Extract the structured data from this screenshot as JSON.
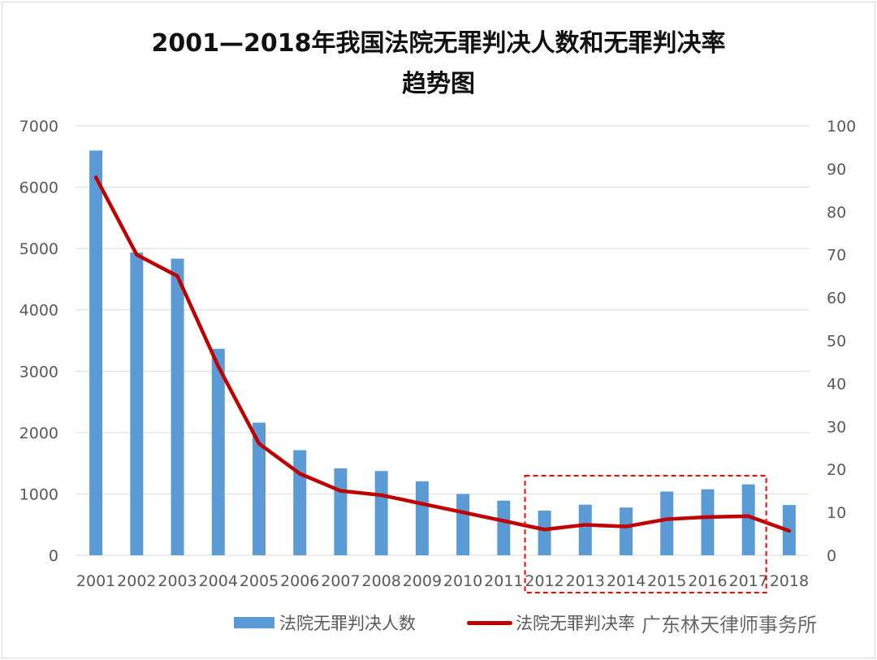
{
  "chart_data": {
    "type": "bar+line",
    "title_line1": "2001—2018年我国法院无罪判决人数和无罪判决率",
    "title_line2": "趋势图",
    "categories": [
      "2001",
      "2002",
      "2003",
      "2004",
      "2005",
      "2006",
      "2007",
      "2008",
      "2009",
      "2010",
      "2011",
      "2012",
      "2013",
      "2014",
      "2015",
      "2016",
      "2017",
      "2018"
    ],
    "series": [
      {
        "name": "法院无罪判决人数",
        "type": "bar",
        "axis": "left",
        "color": "#5b9bd5",
        "values": [
          6597,
          4935,
          4835,
          3365,
          2162,
          1713,
          1417,
          1373,
          1206,
          999,
          891,
          727,
          825,
          778,
          1039,
          1076,
          1156,
          819
        ]
      },
      {
        "name": "法院无罪判决率",
        "type": "line",
        "axis": "right",
        "color": "#c00000",
        "values": [
          88,
          70,
          65,
          44,
          26,
          19,
          15,
          14,
          12,
          10,
          8,
          6,
          7.1,
          6.7,
          8.4,
          8.9,
          9.1,
          5.7
        ]
      }
    ],
    "y_left": {
      "min": 0,
      "max": 7000,
      "ticks": [
        "0",
        "1000",
        "2000",
        "3000",
        "4000",
        "5000",
        "6000",
        "7000"
      ]
    },
    "y_right": {
      "min": 0,
      "max": 100,
      "ticks": [
        "0",
        "10",
        "20",
        "30",
        "40",
        "50",
        "60",
        "70",
        "80",
        "90",
        "100"
      ]
    },
    "grid": true,
    "legend": "bottom",
    "highlight_box": {
      "from": "2012",
      "to": "2017",
      "color": "#ff0000"
    }
  },
  "watermark": "广东林天律师事务所"
}
